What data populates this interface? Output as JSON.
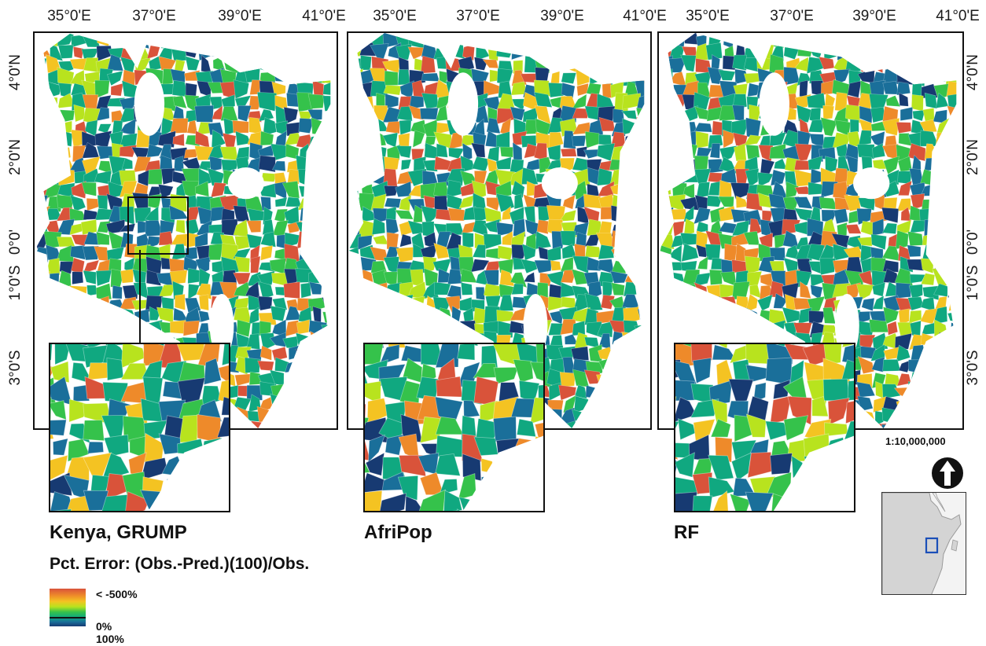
{
  "axes": {
    "lon_ticks": [
      "35°0'E",
      "37°0'E",
      "39°0'E",
      "41°0'E"
    ],
    "lat_ticks": [
      "4°0'N",
      "2°0'N",
      "0°0'",
      "1°0'S",
      "3°0'S"
    ]
  },
  "panels": [
    {
      "label": "Kenya, GRUMP"
    },
    {
      "label": "AfriPop"
    },
    {
      "label": "RF"
    }
  ],
  "legend": {
    "title": "Pct. Error: (Obs.-Pred.)(100)/Obs.",
    "high_label": "< -500%",
    "mid_label": "0%",
    "low_label": "100%",
    "colors": [
      "#d9533a",
      "#ee8a2a",
      "#f4c322",
      "#b8e31e",
      "#35c24b",
      "#10a880",
      "#1a6f9a",
      "#173a72"
    ]
  },
  "scale": "1:10,000,000",
  "north_arrow": "north-arrow-icon"
}
